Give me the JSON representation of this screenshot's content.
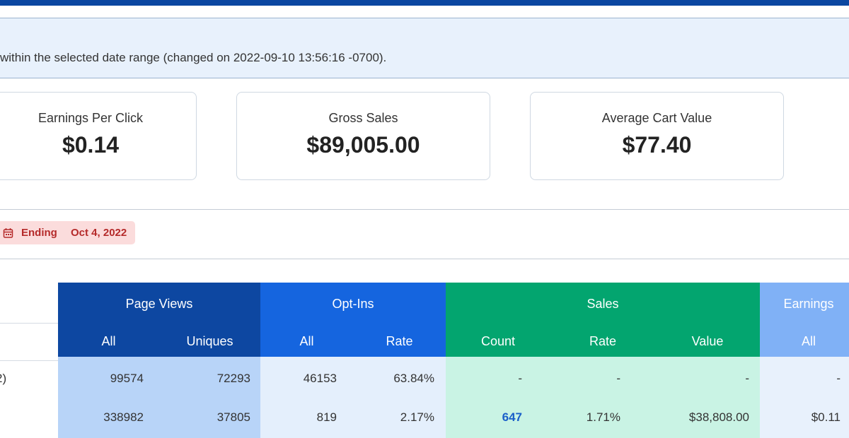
{
  "notice": "within the selected date range (changed on 2022-09-10 13:56:16 -0700).",
  "cards": [
    {
      "label": "Earnings Per Click",
      "value": "$0.14"
    },
    {
      "label": "Gross Sales",
      "value": "$89,005.00"
    },
    {
      "label": "Average Cart Value",
      "value": "$77.40"
    }
  ],
  "date_filter": {
    "label": "Ending",
    "date": "Oct 4, 2022"
  },
  "table": {
    "groups": [
      {
        "name": "Page Views",
        "columns": [
          "All",
          "Uniques"
        ]
      },
      {
        "name": "Opt-Ins",
        "columns": [
          "All",
          "Rate"
        ]
      },
      {
        "name": "Sales",
        "columns": [
          "Count",
          "Rate",
          "Value"
        ]
      },
      {
        "name": "Earnings",
        "columns": [
          "All"
        ]
      }
    ],
    "rows": [
      {
        "label": "2)",
        "cells": [
          "99574",
          "72293",
          "46153",
          "63.84%",
          "-",
          "-",
          "-",
          "-"
        ]
      },
      {
        "cells": [
          "338982",
          "37805",
          "819",
          "2.17%",
          "647",
          "1.71%",
          "$38,808.00",
          "$0.11"
        ]
      }
    ]
  }
}
